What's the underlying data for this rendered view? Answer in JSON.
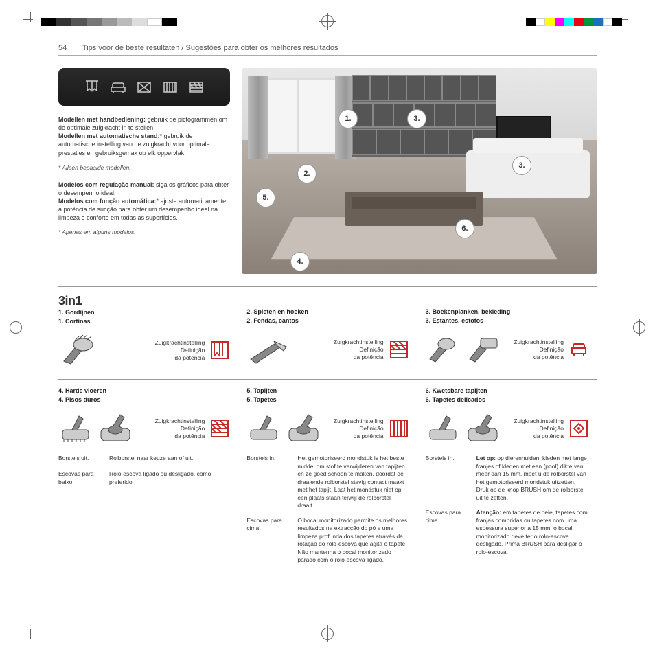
{
  "page_number": "54",
  "header_title": "Tips voor de beste resultaten  /  Sugestões para obter os melhores resultados",
  "intro": {
    "nl_manual_label": "Modellen met handbediening:",
    "nl_manual_text": " gebruik de pictogrammen om de optimale zuigkracht in te stellen.",
    "nl_auto_label": "Modellen met automatische stand:",
    "nl_auto_text": "* gebruik de automatische instelling van de zuigkracht voor optimale prestaties en gebruiksgemak op elk oppervlak.",
    "nl_footnote": "* Alleen bepaalde modellen.",
    "pt_manual_label": "Modelos com regulação manual:",
    "pt_manual_text": " siga os gráficos para obter o desempenho ideal.",
    "pt_auto_label": "Modelos com função automática:",
    "pt_auto_text": "* ajuste automaticamente a potência de sucção para obter um desempenho ideal na limpeza e conforto em todas as superfícies.",
    "pt_footnote": "* Apenas em alguns modelos."
  },
  "callouts": {
    "c1": "1.",
    "c2": "2.",
    "c3a": "3.",
    "c3b": "3.",
    "c4": "4.",
    "c5": "5.",
    "c6": "6."
  },
  "three_in_one": "3in1",
  "suction_label": {
    "nl": "Zuigkrachtinstelling",
    "pt1": "Definição",
    "pt2": "da potência"
  },
  "sections": {
    "s1": {
      "nl": "1.  Gordijnen",
      "pt": "1.  Cortinas"
    },
    "s2": {
      "nl": "2.  Spleten en hoeken",
      "pt": "2.  Fendas, cantos"
    },
    "s3": {
      "nl": "3.  Boekenplanken, bekleding",
      "pt": "3.  Estantes, estofos"
    },
    "s4": {
      "nl": "4.  Harde vloeren",
      "pt": "4.  Pisos duros"
    },
    "s5": {
      "nl": "5.  Tapijten",
      "pt": "5.  Tapetes"
    },
    "s6": {
      "nl": "6.  Kwetsbare tapijten",
      "pt": "6.  Tapetes delicados"
    }
  },
  "s4": {
    "a_nl": "Borstels uit.",
    "a_pt": "Escovas para baixo.",
    "b_nl": "Rolborstel naar keuze aan of uit.",
    "b_pt": "Rolo-escova ligado ou desligado, como preferido."
  },
  "s5": {
    "a_nl": "Borstels in.",
    "a_pt": "Escovas para cima.",
    "b_nl": "Het gemotoriseerd mondstuk is het beste middel om stof te verwijderen van tapijten en ze goed schoon te maken, doordat de draaiende rolborstel stevig contact maakt met het tapijt. Laat het mondstuk niet op één plaats staan terwijl de rolborstel draait.",
    "b_pt": "O bocal monitorizado permite os melhores resultados na extracção do pó e uma limpeza profunda dos tapetes através da rotação do rolo-escova que agita o tapete. Não mantenha o bocal monitorizado parado com o rolo-escova ligado."
  },
  "s6": {
    "a_nl": "Borstels in.",
    "a_pt": "Escovas para cima.",
    "b_label_nl": "Let op:",
    "b_nl": " op dierenhuiden, kleden met lange franjes of kleden met een (pool) dikte van meer dan 15 mm, moet u de rolborstel van het gemotoriseerd mondstuk uitzetten. Druk op de knop BRUSH om de rolborstel uit te zetten.",
    "b_label_pt": "Atenção:",
    "b_pt": " em tapetes de pele, tapetes com franjas compridas ou tapetes com uma espessura superior a 15 mm, o bocal monitorizado deve ter o rolo-escova desligado. Prima BRUSH para desligar o rolo-escova."
  },
  "colors": {
    "bar": [
      "#000",
      "#fff",
      "#ff0",
      "#f0f",
      "#0ff",
      "#e30613",
      "#009640",
      "#1d71b8",
      "#fff",
      "#000"
    ],
    "grays": [
      "#000",
      "#333",
      "#555",
      "#777",
      "#999",
      "#bbb",
      "#ddd",
      "#fff",
      "#000"
    ],
    "red": "#c62828"
  }
}
